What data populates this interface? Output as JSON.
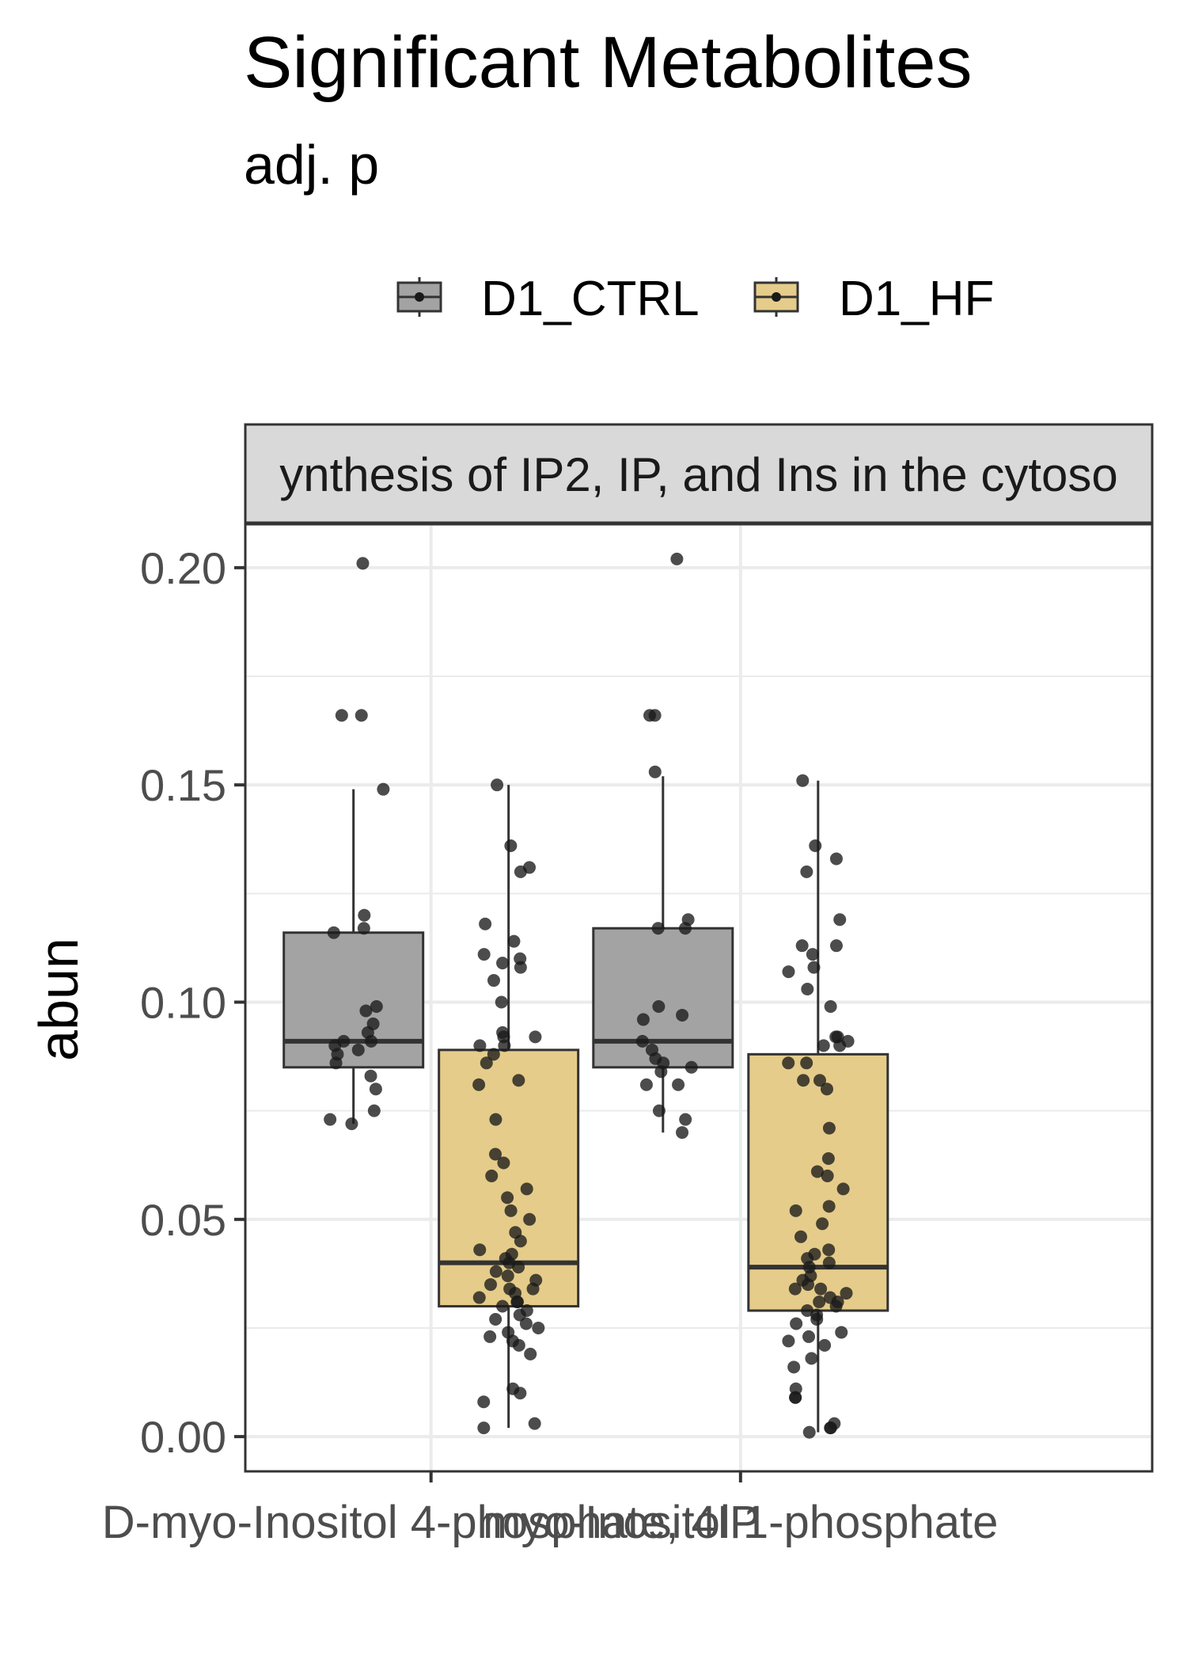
{
  "title": "Significant Metabolites",
  "subtitle": "adj. p",
  "colors": {
    "ctrl_fill": "#a3a3a3",
    "hf_fill": "#e5cc8a",
    "box_stroke": "#333333",
    "point": "#1a1a1a",
    "strip_bg": "#d9d9d9",
    "grid": "#ebebeb"
  },
  "legend": {
    "position": "top",
    "items": [
      "D1_CTRL",
      "D1_HF"
    ]
  },
  "chart_data": {
    "type": "box",
    "facet_label": "ynthesis of IP2, IP, and Ins in the cytoso",
    "ylabel": "abun",
    "xlabel": "",
    "ylim": [
      -0.008,
      0.21
    ],
    "yticks": [
      0.0,
      0.05,
      0.1,
      0.15,
      0.2
    ],
    "ytick_labels": [
      "0.00",
      "0.05",
      "0.10",
      "0.15",
      "0.20"
    ],
    "grid": true,
    "categories": [
      "D-myo-Inositol 4-phosphate, 4IP",
      "myo-Inositol 1-phosphate"
    ],
    "series": [
      {
        "name": "D1_CTRL",
        "boxes": [
          {
            "whisker_low": 0.072,
            "q1": 0.085,
            "median": 0.091,
            "q3": 0.116,
            "whisker_high": 0.149,
            "points": [
              0.201,
              0.166,
              0.166,
              0.149,
              0.12,
              0.117,
              0.116,
              0.099,
              0.098,
              0.095,
              0.093,
              0.091,
              0.091,
              0.09,
              0.089,
              0.088,
              0.086,
              0.083,
              0.08,
              0.075,
              0.073,
              0.072
            ]
          },
          {
            "whisker_low": 0.07,
            "q1": 0.085,
            "median": 0.091,
            "q3": 0.117,
            "whisker_high": 0.152,
            "points": [
              0.202,
              0.166,
              0.166,
              0.153,
              0.119,
              0.117,
              0.117,
              0.099,
              0.097,
              0.096,
              0.091,
              0.089,
              0.087,
              0.086,
              0.085,
              0.084,
              0.081,
              0.081,
              0.075,
              0.073,
              0.07
            ]
          }
        ]
      },
      {
        "name": "D1_HF",
        "boxes": [
          {
            "whisker_low": 0.002,
            "q1": 0.03,
            "median": 0.04,
            "q3": 0.089,
            "whisker_high": 0.15,
            "points": [
              0.15,
              0.136,
              0.131,
              0.13,
              0.118,
              0.114,
              0.111,
              0.11,
              0.109,
              0.108,
              0.105,
              0.1,
              0.093,
              0.092,
              0.092,
              0.09,
              0.09,
              0.088,
              0.086,
              0.082,
              0.081,
              0.073,
              0.065,
              0.063,
              0.06,
              0.057,
              0.055,
              0.052,
              0.05,
              0.047,
              0.045,
              0.043,
              0.042,
              0.041,
              0.04,
              0.039,
              0.038,
              0.037,
              0.036,
              0.035,
              0.034,
              0.034,
              0.033,
              0.032,
              0.031,
              0.031,
              0.03,
              0.029,
              0.028,
              0.027,
              0.026,
              0.025,
              0.024,
              0.023,
              0.022,
              0.021,
              0.019,
              0.011,
              0.01,
              0.008,
              0.003,
              0.002
            ]
          },
          {
            "whisker_low": 0.001,
            "q1": 0.029,
            "median": 0.039,
            "q3": 0.088,
            "whisker_high": 0.151,
            "points": [
              0.151,
              0.136,
              0.133,
              0.13,
              0.119,
              0.113,
              0.113,
              0.111,
              0.108,
              0.107,
              0.103,
              0.099,
              0.092,
              0.092,
              0.091,
              0.09,
              0.09,
              0.086,
              0.086,
              0.082,
              0.082,
              0.08,
              0.071,
              0.064,
              0.061,
              0.06,
              0.057,
              0.053,
              0.052,
              0.049,
              0.046,
              0.043,
              0.042,
              0.041,
              0.04,
              0.039,
              0.037,
              0.036,
              0.035,
              0.034,
              0.034,
              0.033,
              0.032,
              0.031,
              0.031,
              0.03,
              0.029,
              0.028,
              0.027,
              0.026,
              0.024,
              0.023,
              0.022,
              0.021,
              0.018,
              0.016,
              0.011,
              0.009,
              0.009,
              0.003,
              0.002,
              0.002,
              0.001
            ]
          }
        ]
      }
    ]
  }
}
